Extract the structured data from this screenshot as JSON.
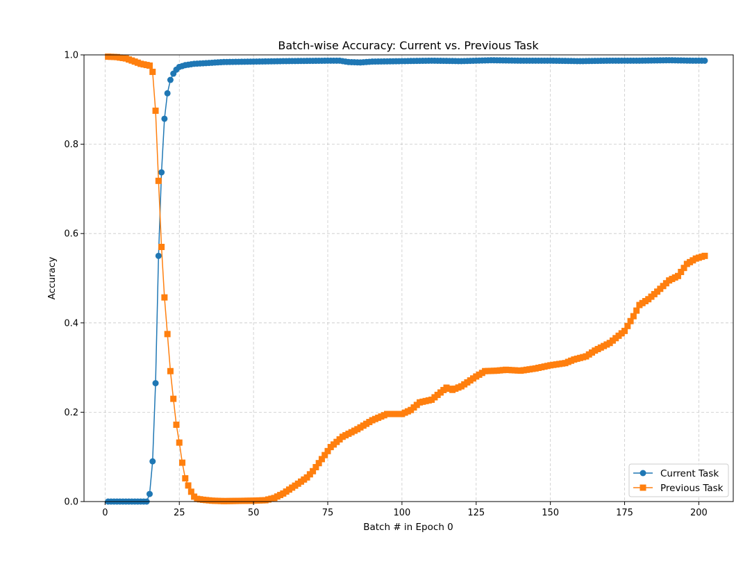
{
  "chart_data": {
    "type": "line",
    "title": "Batch-wise Accuracy: Current vs. Previous Task",
    "xlabel": "Batch # in Epoch 0",
    "ylabel": "Accuracy",
    "xlim": [
      -7.1,
      211.6
    ],
    "ylim": [
      0.0,
      1.0
    ],
    "xticks": [
      0,
      25,
      50,
      75,
      100,
      125,
      150,
      175,
      200
    ],
    "yticks": [
      0.0,
      0.2,
      0.4,
      0.6,
      0.8,
      1.0
    ],
    "xtick_labels": [
      "0",
      "25",
      "50",
      "75",
      "100",
      "125",
      "150",
      "175",
      "200"
    ],
    "ytick_labels": [
      "0.0",
      "0.2",
      "0.4",
      "0.6",
      "0.8",
      "1.0"
    ],
    "grid": true,
    "grid_style": "dashed",
    "legend_position": "lower-right",
    "series": [
      {
        "name": "Current Task",
        "color": "#1f77b4",
        "marker": "circle",
        "keypoints": [
          [
            1,
            0.0
          ],
          [
            14,
            0.0
          ],
          [
            15,
            0.017
          ],
          [
            16,
            0.09
          ],
          [
            17,
            0.265
          ],
          [
            18,
            0.55
          ],
          [
            19,
            0.737
          ],
          [
            20,
            0.857
          ],
          [
            21,
            0.914
          ],
          [
            22,
            0.944
          ],
          [
            23,
            0.958
          ],
          [
            24,
            0.967
          ],
          [
            25,
            0.973
          ],
          [
            27,
            0.977
          ],
          [
            30,
            0.98
          ],
          [
            35,
            0.982
          ],
          [
            40,
            0.984
          ],
          [
            50,
            0.985
          ],
          [
            60,
            0.986
          ],
          [
            75,
            0.987
          ],
          [
            79,
            0.987
          ],
          [
            82,
            0.984
          ],
          [
            86,
            0.983
          ],
          [
            90,
            0.985
          ],
          [
            100,
            0.986
          ],
          [
            110,
            0.987
          ],
          [
            120,
            0.986
          ],
          [
            130,
            0.988
          ],
          [
            140,
            0.987
          ],
          [
            150,
            0.987
          ],
          [
            160,
            0.986
          ],
          [
            170,
            0.987
          ],
          [
            180,
            0.987
          ],
          [
            190,
            0.988
          ],
          [
            198,
            0.987
          ],
          [
            202,
            0.987
          ]
        ]
      },
      {
        "name": "Previous Task",
        "color": "#ff7f0e",
        "marker": "square",
        "keypoints": [
          [
            1,
            0.996
          ],
          [
            4,
            0.995
          ],
          [
            7,
            0.992
          ],
          [
            10,
            0.985
          ],
          [
            12,
            0.98
          ],
          [
            15,
            0.976
          ],
          [
            16,
            0.962
          ],
          [
            17,
            0.875
          ],
          [
            18,
            0.718
          ],
          [
            19,
            0.57
          ],
          [
            20,
            0.457
          ],
          [
            21,
            0.375
          ],
          [
            22,
            0.292
          ],
          [
            23,
            0.23
          ],
          [
            24,
            0.172
          ],
          [
            25,
            0.132
          ],
          [
            26,
            0.087
          ],
          [
            27,
            0.052
          ],
          [
            28,
            0.036
          ],
          [
            29,
            0.022
          ],
          [
            30,
            0.011
          ],
          [
            31,
            0.006
          ],
          [
            33,
            0.004
          ],
          [
            36,
            0.002
          ],
          [
            40,
            0.001
          ],
          [
            50,
            0.002
          ],
          [
            54,
            0.003
          ],
          [
            57,
            0.008
          ],
          [
            60,
            0.018
          ],
          [
            65,
            0.04
          ],
          [
            68,
            0.054
          ],
          [
            70,
            0.068
          ],
          [
            73,
            0.095
          ],
          [
            76,
            0.122
          ],
          [
            80,
            0.145
          ],
          [
            85,
            0.162
          ],
          [
            90,
            0.182
          ],
          [
            95,
            0.196
          ],
          [
            100,
            0.196
          ],
          [
            103,
            0.205
          ],
          [
            106,
            0.222
          ],
          [
            110,
            0.228
          ],
          [
            115,
            0.255
          ],
          [
            117,
            0.25
          ],
          [
            120,
            0.258
          ],
          [
            125,
            0.28
          ],
          [
            128,
            0.292
          ],
          [
            132,
            0.293
          ],
          [
            135,
            0.295
          ],
          [
            140,
            0.293
          ],
          [
            145,
            0.298
          ],
          [
            150,
            0.305
          ],
          [
            155,
            0.31
          ],
          [
            158,
            0.318
          ],
          [
            162,
            0.325
          ],
          [
            165,
            0.338
          ],
          [
            170,
            0.355
          ],
          [
            175,
            0.382
          ],
          [
            178,
            0.415
          ],
          [
            180,
            0.44
          ],
          [
            183,
            0.453
          ],
          [
            186,
            0.47
          ],
          [
            190,
            0.495
          ],
          [
            193,
            0.505
          ],
          [
            196,
            0.532
          ],
          [
            199,
            0.544
          ],
          [
            202,
            0.55
          ]
        ]
      }
    ]
  }
}
